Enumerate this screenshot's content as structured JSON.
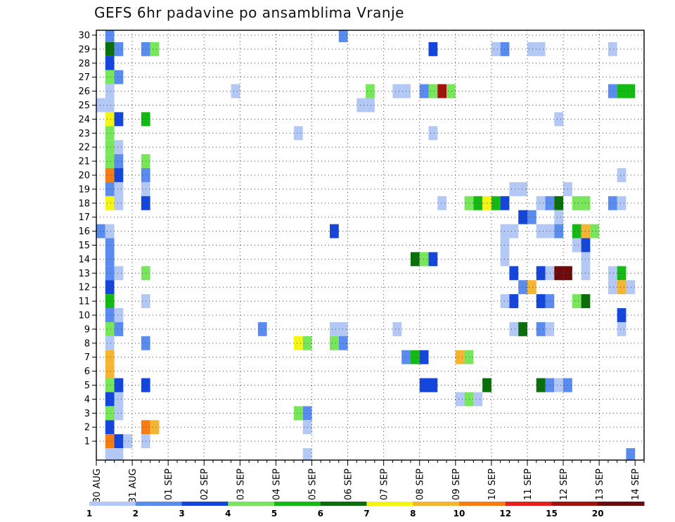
{
  "chart_data": {
    "type": "heatmap",
    "title": "GEFS 6hr padavine po ansamblima Vranje",
    "xlabel": "",
    "ylabel": "",
    "x_tick_labels": [
      "30 AUG",
      "31 AUG",
      "01 SEP",
      "02 SEP",
      "03 SEP",
      "04 SEP",
      "05 SEP",
      "06 SEP",
      "07 SEP",
      "08 SEP",
      "09 SEP",
      "10 SEP",
      "11 SEP",
      "12 SEP",
      "13 SEP",
      "14 SEP"
    ],
    "time_steps": 61,
    "y_tick_labels": [
      "1",
      "2",
      "3",
      "4",
      "5",
      "6",
      "7",
      "8",
      "9",
      "10",
      "11",
      "12",
      "13",
      "14",
      "15",
      "16",
      "17",
      "18",
      "19",
      "20",
      "21",
      "22",
      "23",
      "24",
      "25",
      "26",
      "27",
      "28",
      "29",
      "30"
    ],
    "ylim": [
      0,
      30
    ],
    "grid": true,
    "colorbar": {
      "labels": [
        "1",
        "2",
        "3",
        "4",
        "5",
        "6",
        "7",
        "8",
        "10",
        "12",
        "15",
        "20"
      ],
      "colors": [
        "#b4c8f5",
        "#5a8cf0",
        "#1446dc",
        "#78e65a",
        "#14b914",
        "#0a6e0a",
        "#f5f514",
        "#f5b432",
        "#f57d14",
        "#e61e1e",
        "#a0140f",
        "#6e0a0a"
      ]
    },
    "cells": [
      {
        "m": 30,
        "t": [
          [
            1,
            1
          ],
          [
            27,
            1
          ]
        ]
      },
      {
        "m": 29,
        "t": [
          [
            1,
            5
          ],
          [
            2,
            1
          ],
          [
            5,
            1
          ],
          [
            6,
            3
          ],
          [
            37,
            2
          ],
          [
            44,
            0
          ],
          [
            45,
            1
          ],
          [
            48,
            0
          ],
          [
            49,
            0
          ],
          [
            57,
            0
          ]
        ]
      },
      {
        "m": 28,
        "t": [
          [
            1,
            2
          ]
        ]
      },
      {
        "m": 27,
        "t": [
          [
            1,
            3
          ],
          [
            2,
            1
          ]
        ]
      },
      {
        "m": 26,
        "t": [
          [
            1,
            0
          ],
          [
            15,
            0
          ],
          [
            30,
            3
          ],
          [
            33,
            0
          ],
          [
            34,
            0
          ],
          [
            36,
            1
          ],
          [
            37,
            3
          ],
          [
            38,
            10
          ],
          [
            39,
            3
          ],
          [
            57,
            1
          ],
          [
            58,
            4
          ],
          [
            59,
            4
          ]
        ]
      },
      {
        "m": 25,
        "t": [
          [
            0,
            0
          ],
          [
            1,
            0
          ],
          [
            29,
            0
          ],
          [
            30,
            0
          ]
        ]
      },
      {
        "m": 24,
        "t": [
          [
            1,
            6
          ],
          [
            2,
            2
          ],
          [
            5,
            4
          ],
          [
            51,
            0
          ]
        ]
      },
      {
        "m": 23,
        "t": [
          [
            1,
            3
          ],
          [
            22,
            0
          ],
          [
            37,
            0
          ]
        ]
      },
      {
        "m": 22,
        "t": [
          [
            1,
            3
          ],
          [
            2,
            0
          ]
        ]
      },
      {
        "m": 21,
        "t": [
          [
            1,
            3
          ],
          [
            2,
            1
          ],
          [
            5,
            3
          ]
        ]
      },
      {
        "m": 20,
        "t": [
          [
            1,
            8
          ],
          [
            2,
            2
          ],
          [
            5,
            1
          ],
          [
            58,
            0
          ]
        ]
      },
      {
        "m": 19,
        "t": [
          [
            1,
            1
          ],
          [
            2,
            0
          ],
          [
            5,
            0
          ],
          [
            46,
            0
          ],
          [
            47,
            0
          ],
          [
            52,
            0
          ]
        ]
      },
      {
        "m": 18,
        "t": [
          [
            1,
            6
          ],
          [
            2,
            0
          ],
          [
            5,
            2
          ],
          [
            38,
            0
          ],
          [
            41,
            3
          ],
          [
            42,
            4
          ],
          [
            43,
            6
          ],
          [
            44,
            4
          ],
          [
            45,
            2
          ],
          [
            49,
            0
          ],
          [
            50,
            1
          ],
          [
            51,
            5
          ],
          [
            53,
            3
          ],
          [
            54,
            3
          ],
          [
            57,
            1
          ],
          [
            58,
            0
          ]
        ]
      },
      {
        "m": 17,
        "t": [
          [
            47,
            2
          ],
          [
            48,
            1
          ],
          [
            51,
            0
          ]
        ]
      },
      {
        "m": 16,
        "t": [
          [
            0,
            1
          ],
          [
            1,
            0
          ],
          [
            26,
            2
          ],
          [
            45,
            0
          ],
          [
            46,
            0
          ],
          [
            49,
            0
          ],
          [
            50,
            0
          ],
          [
            51,
            1
          ],
          [
            53,
            4
          ],
          [
            54,
            7
          ],
          [
            55,
            3
          ]
        ]
      },
      {
        "m": 15,
        "t": [
          [
            1,
            1
          ],
          [
            45,
            0
          ],
          [
            53,
            0
          ],
          [
            54,
            2
          ]
        ]
      },
      {
        "m": 14,
        "t": [
          [
            1,
            1
          ],
          [
            35,
            5
          ],
          [
            36,
            3
          ],
          [
            37,
            2
          ],
          [
            45,
            0
          ],
          [
            54,
            0
          ]
        ]
      },
      {
        "m": 13,
        "t": [
          [
            1,
            1
          ],
          [
            2,
            0
          ],
          [
            5,
            3
          ],
          [
            46,
            2
          ],
          [
            49,
            2
          ],
          [
            50,
            0
          ],
          [
            51,
            11
          ],
          [
            52,
            11
          ],
          [
            54,
            0
          ],
          [
            57,
            0
          ],
          [
            58,
            4
          ]
        ]
      },
      {
        "m": 12,
        "t": [
          [
            1,
            2
          ],
          [
            47,
            1
          ],
          [
            48,
            7
          ],
          [
            57,
            0
          ],
          [
            58,
            7
          ],
          [
            59,
            0
          ]
        ]
      },
      {
        "m": 11,
        "t": [
          [
            1,
            4
          ],
          [
            5,
            0
          ],
          [
            45,
            0
          ],
          [
            46,
            2
          ],
          [
            49,
            2
          ],
          [
            50,
            1
          ],
          [
            53,
            3
          ],
          [
            54,
            5
          ]
        ]
      },
      {
        "m": 10,
        "t": [
          [
            1,
            1
          ],
          [
            2,
            0
          ],
          [
            58,
            2
          ]
        ]
      },
      {
        "m": 9,
        "t": [
          [
            1,
            3
          ],
          [
            2,
            1
          ],
          [
            18,
            1
          ],
          [
            26,
            0
          ],
          [
            27,
            0
          ],
          [
            33,
            0
          ],
          [
            46,
            0
          ],
          [
            47,
            5
          ],
          [
            49,
            1
          ],
          [
            50,
            0
          ],
          [
            58,
            0
          ]
        ]
      },
      {
        "m": 8,
        "t": [
          [
            1,
            0
          ],
          [
            5,
            1
          ],
          [
            22,
            6
          ],
          [
            23,
            3
          ],
          [
            26,
            3
          ],
          [
            27,
            1
          ]
        ]
      },
      {
        "m": 7,
        "t": [
          [
            1,
            7
          ],
          [
            34,
            1
          ],
          [
            35,
            4
          ],
          [
            36,
            2
          ],
          [
            40,
            7
          ],
          [
            41,
            3
          ]
        ]
      },
      {
        "m": 6,
        "t": [
          [
            1,
            7
          ]
        ]
      },
      {
        "m": 5,
        "t": [
          [
            1,
            3
          ],
          [
            2,
            2
          ],
          [
            5,
            2
          ],
          [
            36,
            2
          ],
          [
            37,
            2
          ],
          [
            43,
            5
          ],
          [
            49,
            5
          ],
          [
            50,
            1
          ],
          [
            51,
            0
          ],
          [
            52,
            1
          ]
        ]
      },
      {
        "m": 4,
        "t": [
          [
            1,
            2
          ],
          [
            2,
            0
          ],
          [
            40,
            0
          ],
          [
            41,
            3
          ],
          [
            42,
            0
          ]
        ]
      },
      {
        "m": 3,
        "t": [
          [
            1,
            3
          ],
          [
            2,
            0
          ],
          [
            22,
            3
          ],
          [
            23,
            1
          ]
        ]
      },
      {
        "m": 2,
        "t": [
          [
            1,
            2
          ],
          [
            5,
            8
          ],
          [
            6,
            7
          ],
          [
            23,
            0
          ]
        ]
      },
      {
        "m": 1,
        "t": [
          [
            1,
            8
          ],
          [
            2,
            2
          ],
          [
            3,
            0
          ],
          [
            5,
            0
          ]
        ]
      },
      {
        "m": 0,
        "t": [
          [
            1,
            0
          ],
          [
            2,
            0
          ],
          [
            23,
            0
          ],
          [
            59,
            1
          ]
        ]
      }
    ]
  }
}
